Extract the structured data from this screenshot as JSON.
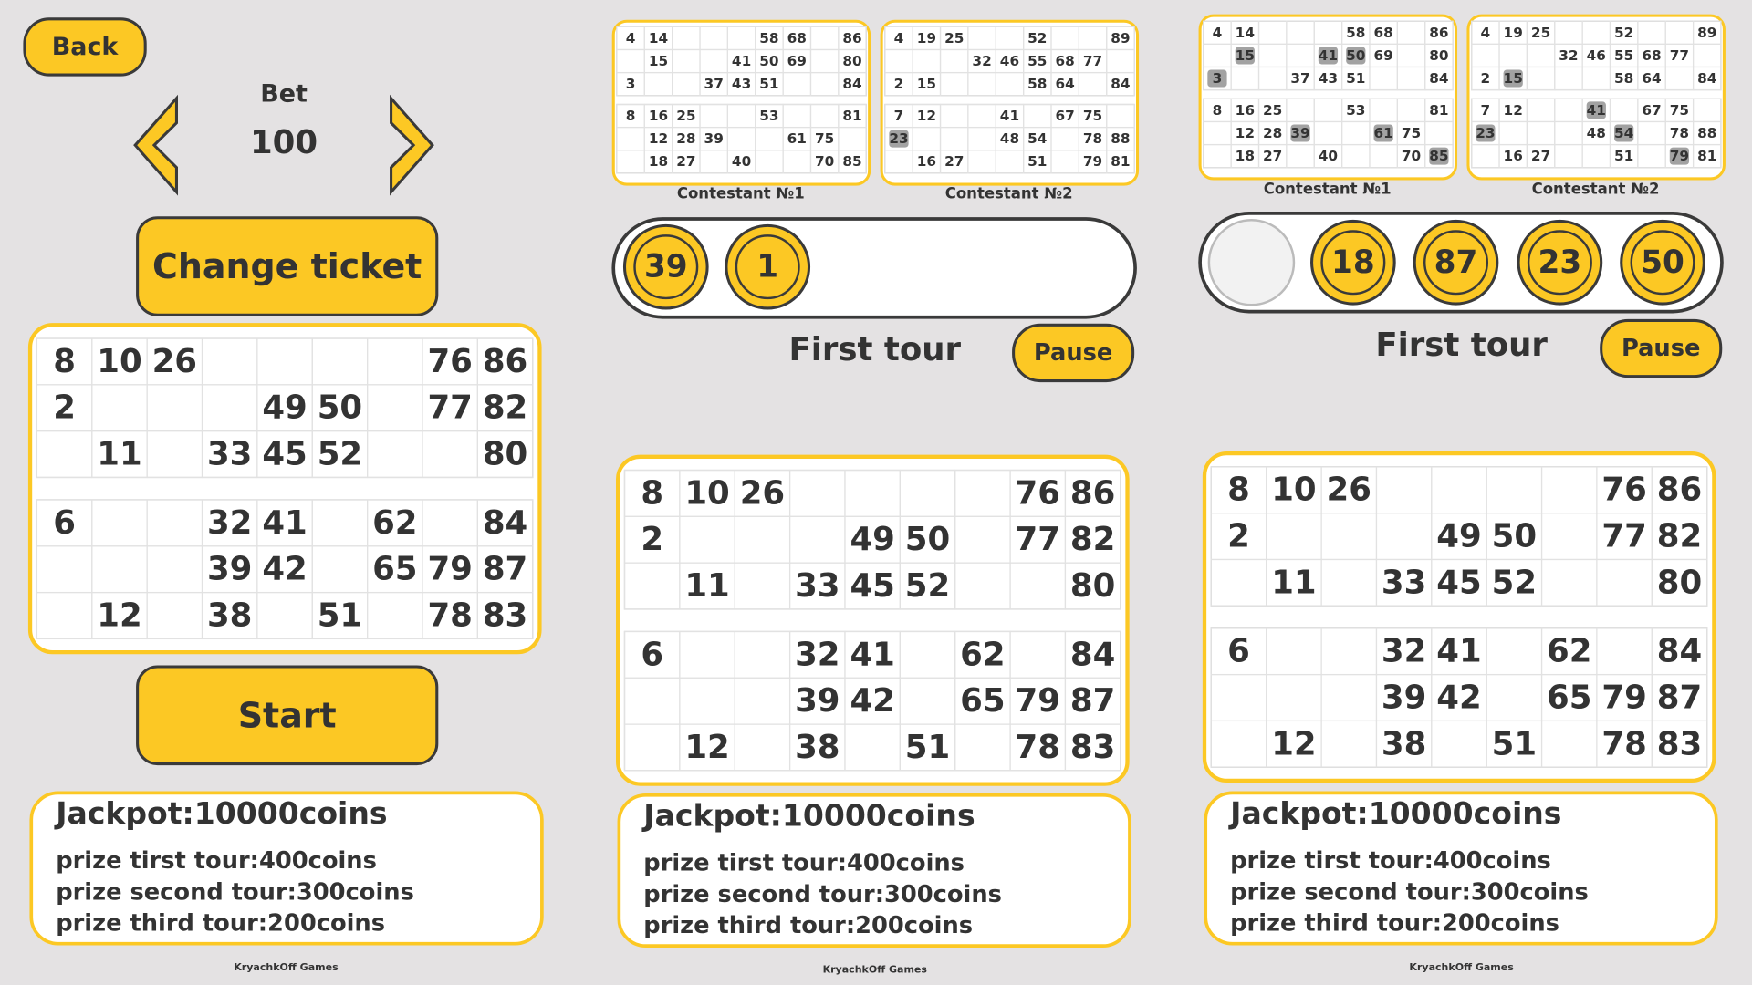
{
  "ticket": {
    "blocks": [
      [
        [
          8,
          10,
          26,
          null,
          null,
          null,
          null,
          76,
          86
        ],
        [
          2,
          null,
          null,
          null,
          49,
          50,
          null,
          77,
          82
        ],
        [
          null,
          11,
          null,
          33,
          45,
          52,
          null,
          null,
          80
        ]
      ],
      [
        [
          6,
          null,
          null,
          32,
          41,
          null,
          62,
          null,
          84
        ],
        [
          null,
          null,
          null,
          39,
          42,
          null,
          65,
          79,
          87
        ],
        [
          null,
          12,
          null,
          38,
          null,
          51,
          null,
          78,
          83
        ]
      ]
    ]
  },
  "contestants": [
    {
      "name": "Contestant №1",
      "blocks": [
        [
          [
            4,
            14,
            null,
            null,
            null,
            58,
            68,
            null,
            86
          ],
          [
            null,
            15,
            null,
            null,
            41,
            50,
            69,
            null,
            80
          ],
          [
            3,
            null,
            null,
            37,
            43,
            51,
            null,
            null,
            84
          ]
        ],
        [
          [
            8,
            16,
            25,
            null,
            null,
            53,
            null,
            null,
            81
          ],
          [
            null,
            12,
            28,
            39,
            null,
            null,
            61,
            75,
            null
          ],
          [
            null,
            18,
            27,
            null,
            40,
            null,
            null,
            70,
            85
          ]
        ]
      ]
    },
    {
      "name": "Contestant №2",
      "blocks": [
        [
          [
            4,
            19,
            25,
            null,
            null,
            52,
            null,
            null,
            89
          ],
          [
            null,
            null,
            null,
            32,
            46,
            55,
            68,
            77,
            null
          ],
          [
            2,
            15,
            null,
            null,
            null,
            58,
            64,
            null,
            84
          ]
        ],
        [
          [
            7,
            12,
            null,
            null,
            41,
            null,
            67,
            75,
            null
          ],
          [
            23,
            null,
            null,
            null,
            48,
            54,
            null,
            78,
            88
          ],
          [
            null,
            16,
            27,
            null,
            null,
            51,
            null,
            79,
            81
          ]
        ]
      ]
    }
  ],
  "info": {
    "jackpot": "Jackpot:10000coins",
    "prizes": [
      "prize tirst tour:400coins",
      "prize second tour:300coins",
      "prize third tour:200coins"
    ]
  },
  "footer": "KryachkOff Games",
  "panels": [
    {
      "back": "Back",
      "bet_label": "Bet",
      "bet": 100,
      "change_ticket": "Change ticket",
      "start": "Start"
    },
    {
      "balls": [
        39,
        1
      ],
      "tour": "First tour",
      "pause": "Pause",
      "marked": [
        [],
        [
          23
        ]
      ]
    },
    {
      "balls": [
        null,
        18,
        87,
        23,
        50
      ],
      "tour": "First tour",
      "pause": "Pause",
      "marked": [
        [
          15,
          41,
          50,
          3,
          39,
          61,
          85
        ],
        [
          15,
          41,
          23,
          54,
          79
        ]
      ]
    }
  ]
}
